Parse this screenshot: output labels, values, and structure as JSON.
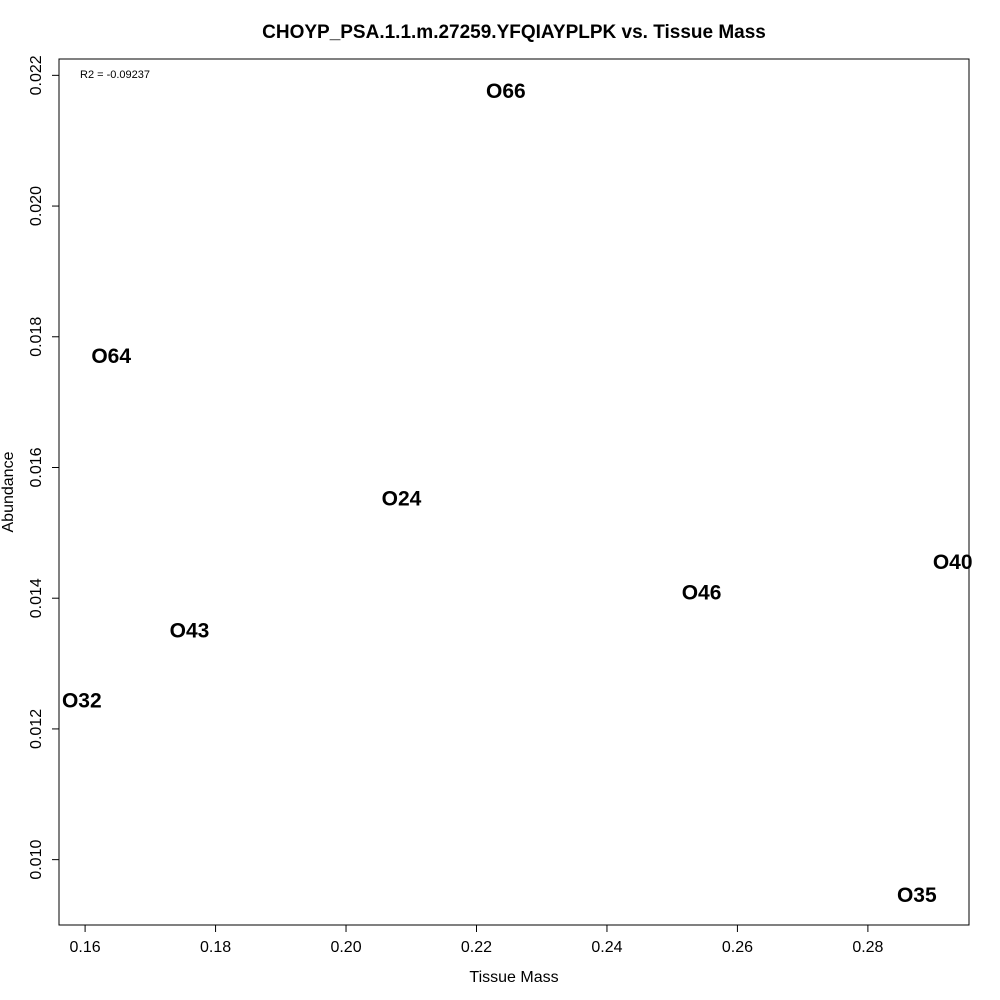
{
  "chart_data": {
    "type": "scatter",
    "title": "CHOYP_PSA.1.1.m.27259.YFQIAYPLPK vs. Tissue Mass",
    "xlabel": "Tissue Mass",
    "ylabel": "Abundance",
    "annotation": "R2 = -0.09237",
    "xlim": [
      0.156,
      0.2955
    ],
    "ylim": [
      0.009,
      0.02225
    ],
    "xticks": [
      0.16,
      0.18,
      0.2,
      0.22,
      0.24,
      0.26,
      0.28
    ],
    "xtick_labels": [
      "0.16",
      "0.18",
      "0.20",
      "0.22",
      "0.24",
      "0.26",
      "0.28"
    ],
    "yticks": [
      0.01,
      0.012,
      0.014,
      0.016,
      0.018,
      0.02,
      0.022
    ],
    "ytick_labels": [
      "0.010",
      "0.012",
      "0.014",
      "0.016",
      "0.018",
      "0.020",
      "0.022"
    ],
    "grid": false,
    "points": [
      {
        "label": "O66",
        "x": 0.2245,
        "y": 0.02175
      },
      {
        "label": "O64",
        "x": 0.164,
        "y": 0.0177
      },
      {
        "label": "O24",
        "x": 0.2085,
        "y": 0.01552
      },
      {
        "label": "O40",
        "x": 0.293,
        "y": 0.01455
      },
      {
        "label": "O46",
        "x": 0.2545,
        "y": 0.01408
      },
      {
        "label": "O43",
        "x": 0.176,
        "y": 0.0135
      },
      {
        "label": "O32",
        "x": 0.1595,
        "y": 0.01243
      },
      {
        "label": "O35",
        "x": 0.2875,
        "y": 0.00945
      }
    ]
  }
}
